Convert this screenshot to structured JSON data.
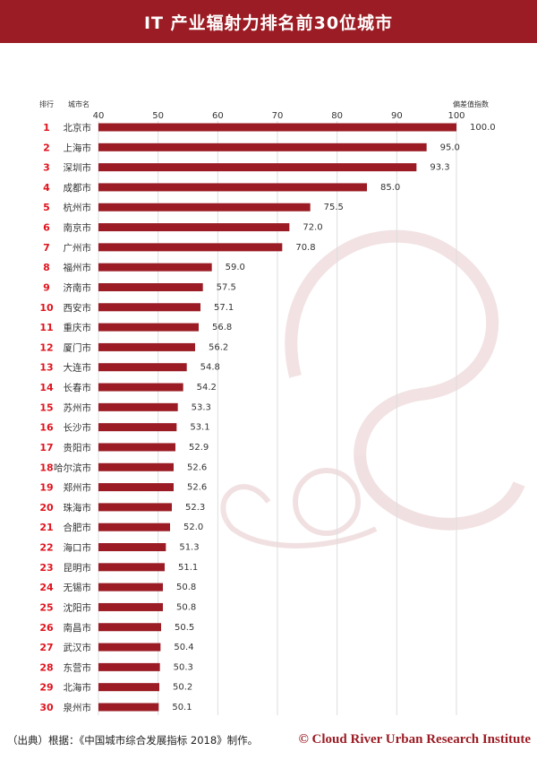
{
  "chart_data": {
    "type": "bar",
    "orientation": "horizontal",
    "title": "IT 产业辐射力排名前30位城市",
    "rank_header": "排行",
    "category_header": "城市名",
    "value_header": "偏差值指数",
    "xlim": [
      40,
      100
    ],
    "xticks": [
      40,
      50,
      60,
      70,
      80,
      90,
      100
    ],
    "grid": true,
    "ranks": [
      1,
      2,
      3,
      4,
      5,
      6,
      7,
      8,
      9,
      10,
      11,
      12,
      13,
      14,
      15,
      16,
      17,
      18,
      19,
      20,
      21,
      22,
      23,
      24,
      25,
      26,
      27,
      28,
      29,
      30
    ],
    "categories": [
      "北京市",
      "上海市",
      "深圳市",
      "成都市",
      "杭州市",
      "南京市",
      "广州市",
      "福州市",
      "济南市",
      "西安市",
      "重庆市",
      "厦门市",
      "大连市",
      "长春市",
      "苏州市",
      "长沙市",
      "贵阳市",
      "哈尔滨市",
      "郑州市",
      "珠海市",
      "合肥市",
      "海口市",
      "昆明市",
      "无锡市",
      "沈阳市",
      "南昌市",
      "武汉市",
      "东营市",
      "北海市",
      "泉州市"
    ],
    "values": [
      100.0,
      95.0,
      93.3,
      85.0,
      75.5,
      72.0,
      70.8,
      59.0,
      57.5,
      57.1,
      56.8,
      56.2,
      54.8,
      54.2,
      53.3,
      53.1,
      52.9,
      52.6,
      52.6,
      52.3,
      52.0,
      51.3,
      51.1,
      50.8,
      50.8,
      50.5,
      50.4,
      50.3,
      50.2,
      50.1
    ],
    "colors": {
      "bar": "#9b1c24",
      "rank": "#e0141e",
      "grid": "#dddddd"
    }
  },
  "footer": {
    "source": "（出典）根据：《中国城市综合发展指标 2018》制作。",
    "copyright": "© Cloud River Urban Research Institute"
  }
}
